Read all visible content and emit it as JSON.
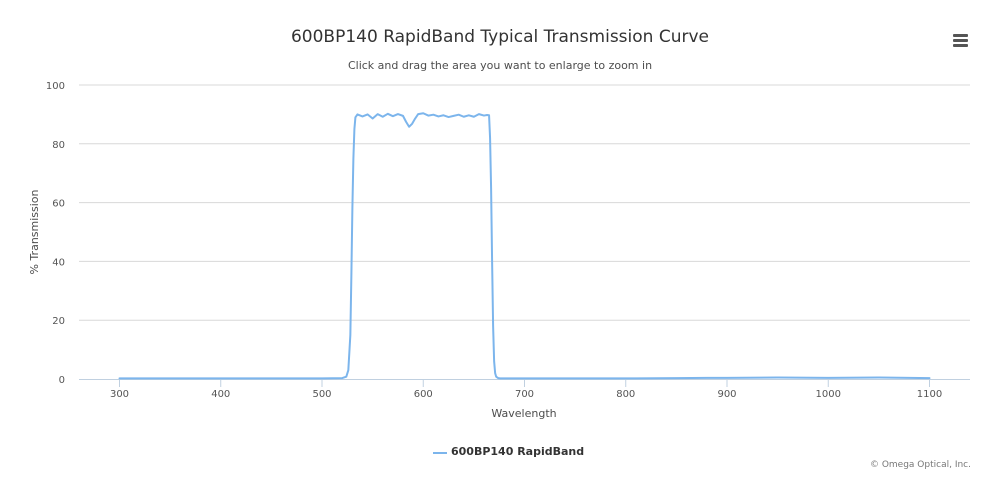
{
  "chart_data": {
    "type": "line",
    "title": "600BP140 RapidBand Typical Transmission Curve",
    "subtitle": "Click and drag the area you want to enlarge to zoom in",
    "xlabel": "Wavelength",
    "ylabel": "% Transmission",
    "xlim": [
      260,
      1140
    ],
    "ylim": [
      0,
      100
    ],
    "x_ticks": [
      300,
      400,
      500,
      600,
      700,
      800,
      900,
      1000,
      1100
    ],
    "y_ticks": [
      0,
      20,
      40,
      60,
      80,
      100
    ],
    "grid": true,
    "legend_position": "bottom-center",
    "series": [
      {
        "name": "600BP140 RapidBand",
        "color": "#7cb5ec",
        "x": [
          300,
          400,
          500,
          520,
          524,
          526,
          528,
          529,
          530,
          531,
          532,
          533,
          535,
          540,
          545,
          550,
          555,
          560,
          565,
          570,
          575,
          580,
          583,
          586,
          589,
          592,
          595,
          600,
          605,
          610,
          615,
          620,
          625,
          630,
          635,
          640,
          645,
          650,
          655,
          660,
          663,
          665,
          666,
          667,
          668,
          669,
          670,
          671,
          672,
          674,
          676,
          680,
          700,
          800,
          850,
          880,
          900,
          950,
          1000,
          1050,
          1100
        ],
        "y": [
          0.2,
          0.2,
          0.2,
          0.3,
          0.8,
          3,
          15,
          35,
          58,
          75,
          85,
          89,
          90,
          89.3,
          90,
          88.6,
          90.1,
          89.2,
          90.2,
          89.4,
          90.1,
          89.5,
          87.5,
          85.8,
          86.8,
          88.6,
          90.1,
          90.4,
          89.6,
          89.9,
          89.3,
          89.7,
          89.1,
          89.5,
          89.9,
          89.2,
          89.7,
          89.2,
          90.1,
          89.6,
          89.8,
          89.7,
          82,
          65,
          40,
          18,
          6,
          2,
          0.8,
          0.3,
          0.2,
          0.2,
          0.2,
          0.2,
          0.3,
          0.4,
          0.4,
          0.5,
          0.4,
          0.5,
          0.3
        ]
      }
    ]
  },
  "credits": "© Omega Optical, Inc.",
  "icons": {
    "menu": "hamburger-menu-icon"
  }
}
